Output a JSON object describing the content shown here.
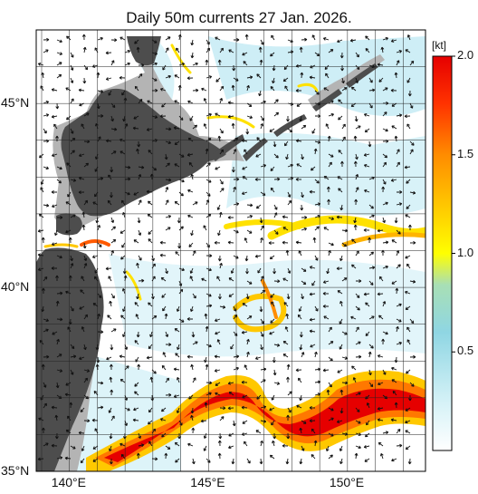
{
  "title": "Daily 50m currents 27 Jan. 2026.",
  "map": {
    "lat_labels": [
      {
        "text": "45°N",
        "lat": 45
      },
      {
        "text": "40°N",
        "lat": 40
      },
      {
        "text": "35°N",
        "lat": 35
      }
    ],
    "lon_labels": [
      {
        "text": "140°E",
        "lon": 140
      },
      {
        "text": "145°E",
        "lon": 145
      },
      {
        "text": "150°E",
        "lon": 150
      }
    ],
    "lon_range": [
      139,
      153
    ],
    "lat_range": [
      35,
      47
    ]
  },
  "colorbar": {
    "unit": "[kt]",
    "ticks": [
      "2.0",
      "1.5",
      "1.0",
      "0.5"
    ],
    "tick_values": [
      2.0,
      1.5,
      1.0,
      0.5
    ],
    "range": [
      0,
      2.0
    ],
    "colors": [
      "#ffffff",
      "#bfe9f2",
      "#8fd6e3",
      "#b7e39a",
      "#ffff00",
      "#ffc800",
      "#ff8c00",
      "#ff3200",
      "#e60000"
    ]
  },
  "colors": {
    "land": "#4d4d4d",
    "shelf": "#b4b4b4",
    "ocean": "#ffffff",
    "grid": "#222222"
  }
}
